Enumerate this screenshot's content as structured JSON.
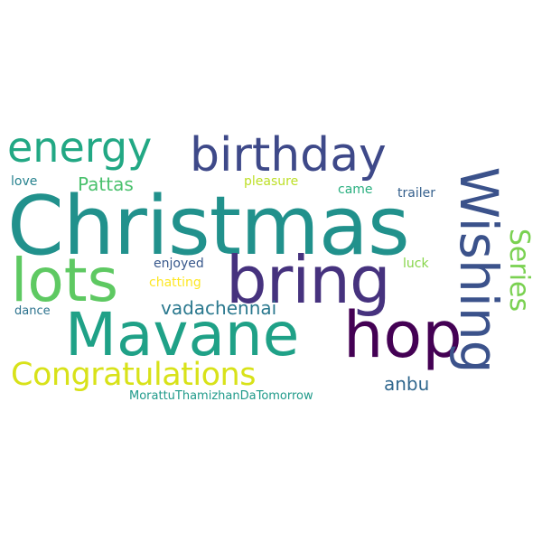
{
  "words": [
    {
      "text": "Christmas",
      "color": "#21918c"
    },
    {
      "text": "bring",
      "color": "#46327e"
    },
    {
      "text": "Mavane",
      "color": "#1fa187"
    },
    {
      "text": "hop",
      "color": "#440154"
    },
    {
      "text": "Wishing",
      "color": "#3b528b"
    },
    {
      "text": "lots",
      "color": "#5ec962"
    },
    {
      "text": "birthday",
      "color": "#3e4989"
    },
    {
      "text": "energy",
      "color": "#22a884"
    },
    {
      "text": "Congratulations",
      "color": "#d8e219"
    },
    {
      "text": "Series",
      "color": "#7ad151"
    },
    {
      "text": "vadachennai",
      "color": "#2a788e"
    },
    {
      "text": "Pattas",
      "color": "#4ac16d"
    },
    {
      "text": "anbu",
      "color": "#31688e"
    },
    {
      "text": "love",
      "color": "#26828e"
    },
    {
      "text": "pleasure",
      "color": "#bddf26"
    },
    {
      "text": "came",
      "color": "#29af7f"
    },
    {
      "text": "trailer",
      "color": "#35608d"
    },
    {
      "text": "enjoyed",
      "color": "#38588c"
    },
    {
      "text": "luck",
      "color": "#86d549"
    },
    {
      "text": "chatting",
      "color": "#fde725"
    },
    {
      "text": "dance",
      "color": "#2c728e"
    },
    {
      "text": "MorattuThamizhanDaTomorrow",
      "color": "#1f9a8a"
    }
  ]
}
